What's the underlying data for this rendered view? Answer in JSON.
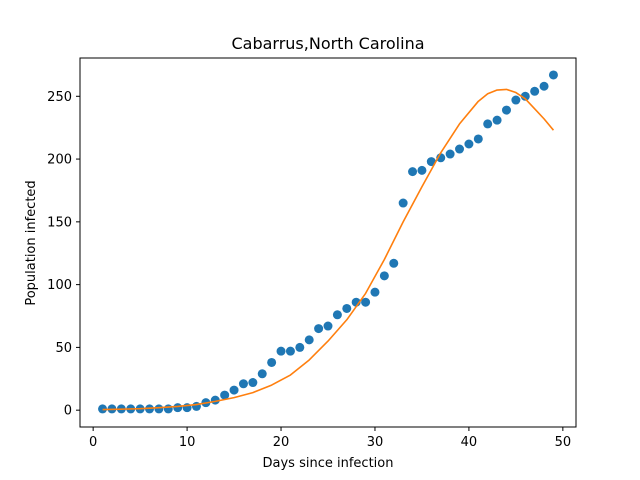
{
  "chart_data": {
    "type": "scatter",
    "title": "Cabarrus,North Carolina",
    "xlabel": "Days since infection",
    "ylabel": "Population infected",
    "xlim": [
      -1.4,
      51.4
    ],
    "ylim": [
      -13.4,
      280.5
    ],
    "x_ticks": [
      0,
      10,
      20,
      30,
      40,
      50
    ],
    "y_ticks": [
      0,
      50,
      100,
      150,
      200,
      250
    ],
    "grid": false,
    "series": [
      {
        "type": "scatter",
        "color": "#1f77b4",
        "x": [
          1,
          2,
          3,
          4,
          5,
          6,
          7,
          8,
          9,
          10,
          11,
          12,
          13,
          14,
          15,
          16,
          17,
          18,
          19,
          20,
          21,
          22,
          23,
          24,
          25,
          26,
          27,
          28,
          29,
          30,
          31,
          32,
          33,
          34,
          35,
          36,
          37,
          38,
          39,
          40,
          41,
          42,
          43,
          44,
          45,
          46,
          47,
          48,
          49
        ],
        "y": [
          1,
          1,
          1,
          1,
          1,
          1,
          1,
          1,
          2,
          2,
          3,
          6,
          8,
          12,
          16,
          21,
          22,
          29,
          38,
          47,
          47,
          50,
          56,
          65,
          67,
          76,
          81,
          86,
          86,
          94,
          107,
          117,
          165,
          190,
          191,
          198,
          201,
          204,
          208,
          212,
          216,
          228,
          231,
          239,
          247,
          250,
          254,
          258,
          267
        ]
      },
      {
        "type": "line",
        "color": "#ff7f0e",
        "x": [
          1,
          3,
          5,
          7,
          9,
          11,
          13,
          15,
          17,
          19,
          21,
          23,
          25,
          27,
          29,
          31,
          33,
          35,
          37,
          39,
          41,
          42,
          43,
          44,
          45,
          46,
          47,
          48,
          49
        ],
        "y": [
          0.5,
          0.8,
          1.2,
          2,
          3,
          4.5,
          7,
          10,
          14,
          20,
          28,
          40,
          55,
          72,
          93,
          120,
          150,
          178,
          205,
          228,
          246,
          252,
          255,
          255.5,
          253,
          248,
          240,
          232,
          223
        ]
      }
    ]
  }
}
